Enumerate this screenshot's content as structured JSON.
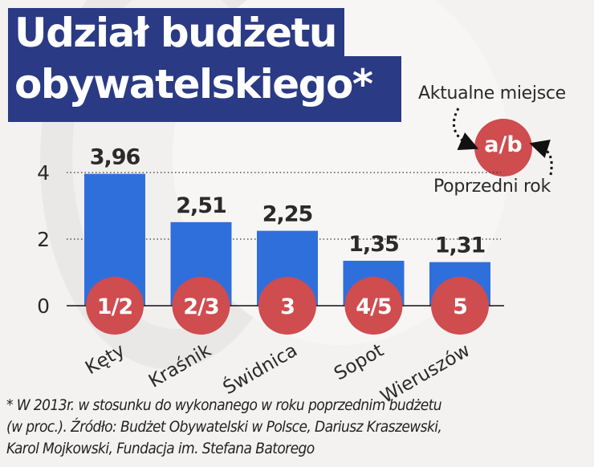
{
  "title": {
    "line1": "Udział budżetu",
    "line2": "obywatelskiego*"
  },
  "legend": {
    "top_label": "Aktualne miejsce",
    "badge": "a/b",
    "bottom_label": "Poprzedni rok"
  },
  "colors": {
    "bar": "#2f6fdc",
    "badge": "#cf4c4f",
    "title_bg": "#2b3a84",
    "background": "#f3f2f1",
    "text": "#2a2a2a"
  },
  "chart_data": {
    "type": "bar",
    "title": "Udział budżetu obywatelskiego*",
    "xlabel": "",
    "ylabel": "",
    "ylim": [
      0,
      4
    ],
    "yticks": [
      0,
      2,
      4
    ],
    "ytick_labels": [
      "0",
      "2",
      "4"
    ],
    "grid": "dotted horizontal at 2 and 4",
    "categories": [
      "Kęty",
      "Kraśnik",
      "Świdnica",
      "Sopot",
      "Wieruszów"
    ],
    "values": [
      3.96,
      2.51,
      2.25,
      1.35,
      1.31
    ],
    "value_labels": [
      "3,96",
      "2,51",
      "2,25",
      "1,35",
      "1,31"
    ],
    "rank_labels": [
      "1/2",
      "2/3",
      "3",
      "4/5",
      "5"
    ]
  },
  "footnote": {
    "line1": "* W 2013r. w stosunku do wykonanego w roku poprzednim budżetu",
    "line2": "(w proc.). Źródło: Budżet Obywatelski w Polsce, Dariusz Kraszewski,",
    "line3": "Karol Mojkowski, Fundacja im. Stefana Batorego"
  }
}
